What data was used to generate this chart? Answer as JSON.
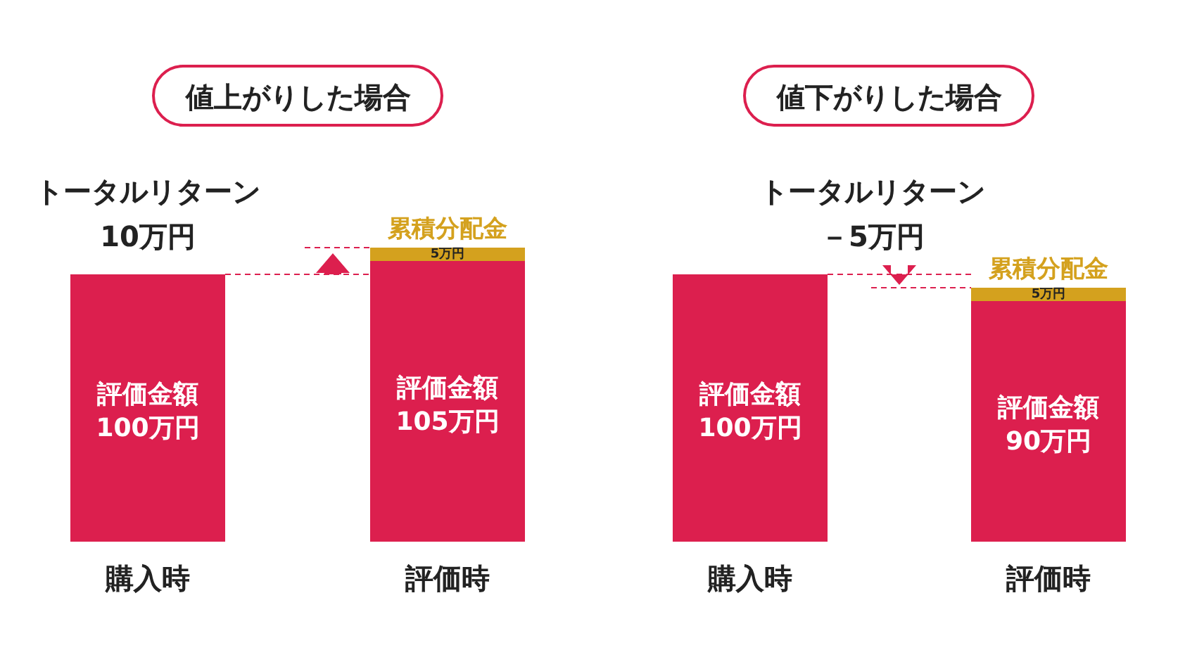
{
  "chart_data": [
    {
      "type": "bar",
      "title": "値上がりした場合",
      "categories": [
        "購入時",
        "評価時"
      ],
      "stacked": true,
      "annotations": [
        "トータルリターン",
        "10万円"
      ],
      "series": [
        {
          "name": "評価金額",
          "color": "#dc1f4e",
          "values": [
            100,
            105
          ],
          "value_labels": [
            "100万円",
            "105万円"
          ]
        },
        {
          "name": "累積分配金",
          "color": "#d4a11e",
          "values": [
            null,
            5
          ],
          "value_labels": [
            null,
            "5万円"
          ]
        }
      ]
    },
    {
      "type": "bar",
      "title": "値下がりした場合",
      "categories": [
        "購入時",
        "評価時"
      ],
      "stacked": true,
      "annotations": [
        "トータルリターン",
        "－5万円"
      ],
      "series": [
        {
          "name": "評価金額",
          "color": "#dc1f4e",
          "values": [
            100,
            90
          ],
          "value_labels": [
            "100万円",
            "90万円"
          ]
        },
        {
          "name": "累積分配金",
          "color": "#d4a11e",
          "values": [
            null,
            5
          ],
          "value_labels": [
            null,
            "5万円"
          ]
        }
      ]
    }
  ]
}
